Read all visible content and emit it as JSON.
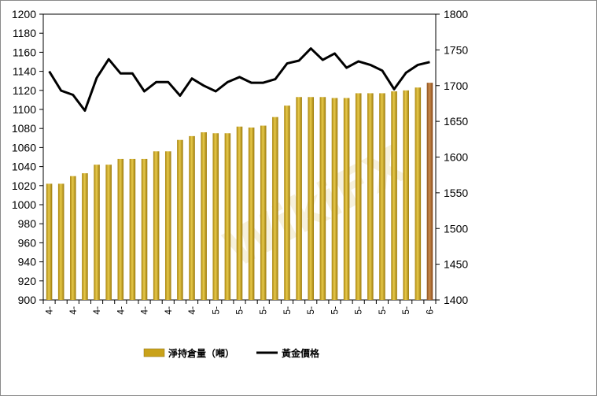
{
  "chart_data": {
    "type": "bar+line",
    "categories": [
      "4-",
      "4-",
      "4-",
      "4-",
      "4-",
      "4-",
      "4-",
      "4-",
      "4-",
      "4-",
      "4-",
      "4-",
      "4-",
      "4-",
      "4-",
      "5-",
      "5-",
      "5-",
      "5-",
      "5-",
      "5-",
      "5-",
      "5-",
      "5-",
      "5-",
      "5-",
      "5-",
      "5-",
      "5-",
      "5-",
      "5-",
      "5-",
      "6-"
    ],
    "series": [
      {
        "name": "淨持倉量（噸）",
        "axis": "left",
        "type": "bar",
        "color": "#c9a21a",
        "highlight_color": "#b06a2a",
        "values": [
          1022,
          1022,
          1030,
          1033,
          1042,
          1042,
          1048,
          1048,
          1048,
          1056,
          1056,
          1068,
          1072,
          1076,
          1075,
          1075,
          1082,
          1081,
          1083,
          1092,
          1104,
          1113,
          1113,
          1113,
          1112,
          1112,
          1117,
          1117,
          1117,
          1119,
          1120,
          1123,
          1128
        ]
      },
      {
        "name": "黃金價格",
        "axis": "right",
        "type": "line",
        "color": "#000000",
        "values": [
          1720,
          1693,
          1687,
          1665,
          1711,
          1737,
          1717,
          1717,
          1692,
          1705,
          1705,
          1686,
          1710,
          1700,
          1692,
          1705,
          1712,
          1704,
          1704,
          1709,
          1731,
          1735,
          1752,
          1736,
          1745,
          1725,
          1734,
          1729,
          1721,
          1695,
          1718,
          1729,
          1733
        ]
      }
    ],
    "left_axis": {
      "ylim": [
        900,
        1200
      ],
      "ticks": [
        "900",
        "920",
        "940",
        "960",
        "980",
        "1000",
        "1020",
        "1040",
        "1060",
        "1080",
        "1100",
        "1120",
        "1140",
        "1160",
        "1180",
        "1200"
      ]
    },
    "right_axis": {
      "ylim": [
        1400,
        1800
      ],
      "ticks": [
        "1400",
        "1450",
        "1500",
        "1550",
        "1600",
        "1650",
        "1700",
        "1750",
        "1800"
      ]
    },
    "x_tick_labels": [
      "4-",
      "4-",
      "4-",
      "4-",
      "4-",
      "4-",
      "4-",
      "5-",
      "5-",
      "5-",
      "5-",
      "5-",
      "5-",
      "5-",
      "5-",
      "5-",
      "6-"
    ],
    "grid": false,
    "legend_position": "bottom",
    "watermark": "WikiFX"
  }
}
